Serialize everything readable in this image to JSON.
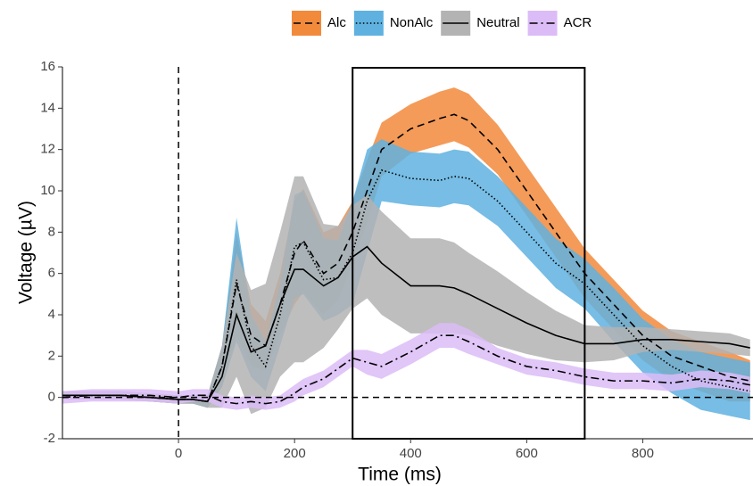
{
  "chart_data": {
    "type": "line",
    "x_label": "Time (ms)",
    "y_label": "Voltage (µV)",
    "x": [
      -200,
      -150,
      -100,
      -50,
      0,
      25,
      50,
      75,
      100,
      125,
      150,
      175,
      200,
      215,
      250,
      275,
      300,
      325,
      350,
      400,
      450,
      475,
      500,
      550,
      600,
      650,
      700,
      750,
      800,
      850,
      900,
      950,
      985
    ],
    "xlim": [
      -200,
      990
    ],
    "xticks": [
      0,
      200,
      400,
      600,
      800
    ],
    "ylim": [
      -2,
      16
    ],
    "yticks": [
      -2,
      0,
      2,
      4,
      6,
      8,
      10,
      12,
      14,
      16
    ],
    "line_color": "#000000",
    "reference_x": 0,
    "reference_y": 0,
    "window": [
      300,
      700
    ],
    "series": [
      {
        "name": "Alc",
        "color": "#f28a3c",
        "dash": "dashed",
        "values": [
          0.1,
          0.1,
          0.1,
          0,
          -0.1,
          -0.1,
          -0.2,
          1.5,
          5.5,
          3.0,
          2.5,
          4.5,
          7.0,
          7.6,
          6.0,
          6.5,
          8.0,
          10.0,
          12.0,
          13.0,
          13.5,
          13.7,
          13.4,
          12.0,
          10.0,
          8.0,
          6.0,
          4.5,
          3.0,
          2.0,
          1.5,
          1.0,
          0.8
        ],
        "lower": [
          -0.1,
          -0.1,
          -0.1,
          -0.2,
          -0.3,
          -0.3,
          -0.5,
          0.5,
          3.0,
          1.5,
          1.3,
          3.0,
          4.5,
          5.1,
          4.0,
          4.7,
          6.5,
          8.5,
          10.7,
          11.8,
          12.2,
          12.4,
          12.1,
          10.8,
          8.8,
          6.8,
          4.8,
          3.3,
          1.8,
          0.8,
          0.3,
          -0.2,
          -0.2
        ],
        "upper": [
          0.3,
          0.3,
          0.3,
          0.2,
          0.1,
          0.1,
          0.1,
          2.5,
          8.0,
          4.5,
          3.7,
          6.0,
          9.5,
          10.1,
          8.0,
          8.3,
          9.5,
          11.5,
          13.3,
          14.2,
          14.8,
          15.0,
          14.7,
          13.2,
          11.2,
          9.2,
          7.2,
          5.7,
          4.2,
          3.2,
          2.7,
          2.2,
          1.8
        ]
      },
      {
        "name": "NonAlc",
        "color": "#5fb2e0",
        "dash": "dotted",
        "values": [
          0.1,
          0.1,
          0.1,
          0,
          -0.1,
          -0.1,
          -0.2,
          1.5,
          5.7,
          2.5,
          1.5,
          4.0,
          7.3,
          7.5,
          5.7,
          5.8,
          7.0,
          9.5,
          11.0,
          10.6,
          10.5,
          10.7,
          10.6,
          9.5,
          8.0,
          6.5,
          5.5,
          4.0,
          2.5,
          1.5,
          0.8,
          0.5,
          0.3
        ],
        "lower": [
          -0.1,
          -0.1,
          -0.1,
          -0.2,
          -0.3,
          -0.3,
          -0.5,
          0.5,
          2.7,
          1.0,
          0.3,
          2.5,
          4.8,
          5.0,
          3.7,
          4.0,
          4.5,
          7.0,
          9.5,
          9.3,
          9.2,
          9.4,
          9.3,
          8.3,
          6.8,
          5.3,
          4.3,
          2.7,
          1.2,
          0.2,
          -0.6,
          -0.9,
          -1.1
        ],
        "upper": [
          0.3,
          0.3,
          0.3,
          0.2,
          0.1,
          0.1,
          0.1,
          2.5,
          8.7,
          4.0,
          2.7,
          5.5,
          9.8,
          10.0,
          7.7,
          7.6,
          9.5,
          12.0,
          12.5,
          11.9,
          11.8,
          12.0,
          11.9,
          10.7,
          9.2,
          7.7,
          6.7,
          5.3,
          3.8,
          2.8,
          2.2,
          1.9,
          1.7
        ]
      },
      {
        "name": "Neutral",
        "color": "#b3b3b3",
        "dash": "solid",
        "values": [
          0.1,
          0.1,
          0.1,
          0,
          -0.1,
          -0.1,
          -0.2,
          1.0,
          4.0,
          2.2,
          2.5,
          4.5,
          6.2,
          6.2,
          5.4,
          5.8,
          6.8,
          7.3,
          6.5,
          5.4,
          5.4,
          5.3,
          5.0,
          4.3,
          3.6,
          3.0,
          2.6,
          2.6,
          2.8,
          2.8,
          2.7,
          2.6,
          2.4
        ],
        "lower": [
          -0.1,
          -0.1,
          -0.1,
          -0.2,
          -0.3,
          -0.3,
          -0.5,
          -0.5,
          1.0,
          -0.8,
          -0.5,
          1.0,
          1.7,
          1.7,
          2.4,
          3.3,
          4.3,
          4.8,
          4.0,
          3.1,
          3.1,
          3.1,
          3.0,
          2.5,
          2.1,
          1.8,
          1.7,
          1.8,
          2.2,
          2.3,
          2.2,
          2.1,
          2.0
        ],
        "upper": [
          0.3,
          0.3,
          0.3,
          0.2,
          0.1,
          0.1,
          0.1,
          2.5,
          7.0,
          5.2,
          5.5,
          8.0,
          10.7,
          10.7,
          8.4,
          8.3,
          9.3,
          9.8,
          9.0,
          7.7,
          7.7,
          7.5,
          7.0,
          6.1,
          5.1,
          4.2,
          3.5,
          3.4,
          3.4,
          3.3,
          3.2,
          3.1,
          2.8
        ]
      },
      {
        "name": "ACR",
        "color": "#dcbcf7",
        "dash": "dashdot",
        "values": [
          0,
          0.1,
          0.1,
          0.1,
          0,
          0.1,
          0.1,
          -0.2,
          -0.3,
          -0.2,
          -0.3,
          -0.2,
          0.2,
          0.5,
          0.9,
          1.4,
          1.9,
          1.7,
          1.5,
          2.2,
          3.0,
          3.0,
          2.7,
          2.0,
          1.5,
          1.3,
          1.0,
          0.8,
          0.8,
          0.7,
          0.9,
          0.8,
          0.6
        ],
        "lower": [
          -0.3,
          -0.2,
          -0.2,
          -0.2,
          -0.3,
          -0.2,
          -0.2,
          -0.5,
          -0.6,
          -0.5,
          -0.6,
          -0.5,
          -0.2,
          0.1,
          0.5,
          1.0,
          1.5,
          1.1,
          0.9,
          1.6,
          2.4,
          2.4,
          2.1,
          1.6,
          1.1,
          0.9,
          0.6,
          0.4,
          0.4,
          0.3,
          0.5,
          0.4,
          0.2
        ],
        "upper": [
          0.3,
          0.4,
          0.4,
          0.4,
          0.3,
          0.4,
          0.4,
          0.1,
          0,
          0.1,
          0,
          0.1,
          0.6,
          0.9,
          1.3,
          1.8,
          2.3,
          2.3,
          2.1,
          2.8,
          3.6,
          3.6,
          3.3,
          2.4,
          1.9,
          1.7,
          1.4,
          1.2,
          1.2,
          1.1,
          1.3,
          1.2,
          1.0
        ]
      }
    ]
  }
}
